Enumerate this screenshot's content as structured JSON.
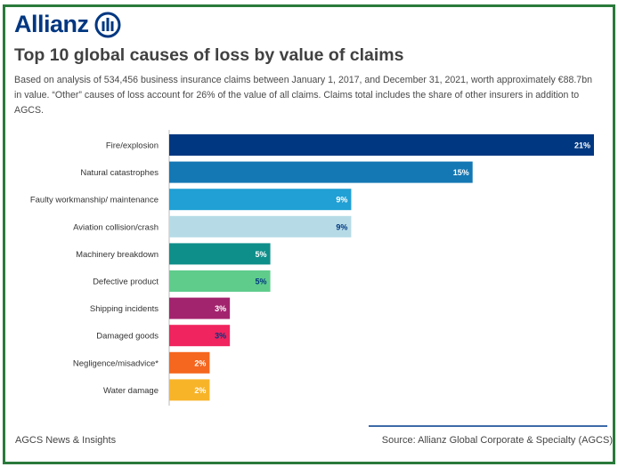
{
  "brand": {
    "name": "Allianz",
    "color": "#003781"
  },
  "header": {
    "title": "Top 10 global causes of loss by value of claims",
    "subtitle": "Based on analysis of 534,456 business insurance claims between January 1, 2017, and December 31, 2021, worth approximately €88.7bn in value. “Other” causes of loss account for 26% of the value of all claims. Claims total includes the share of other insurers in addition to AGCS."
  },
  "chart_data": {
    "type": "bar",
    "orientation": "horizontal",
    "categories": [
      "Fire/explosion",
      "Natural catastrophes",
      "Faulty workmanship/ maintenance",
      "Aviation collision/crash",
      "Machinery breakdown",
      "Defective product",
      "Shipping incidents",
      "Damaged goods",
      "Negligence/misadvice*",
      "Water damage"
    ],
    "values": [
      21,
      15,
      9,
      9,
      5,
      5,
      3,
      3,
      2,
      2
    ],
    "data_labels": [
      "21%",
      "15%",
      "9%",
      "9%",
      "5%",
      "5%",
      "3%",
      "3%",
      "2%",
      "2%"
    ],
    "colors": [
      "#003781",
      "#1478b4",
      "#20a0d4",
      "#b6dbe6",
      "#0f8f8a",
      "#5fcc8c",
      "#a3246e",
      "#f0245e",
      "#f5661e",
      "#f8b429"
    ],
    "label_colors": [
      "#ffffff",
      "#ffffff",
      "#ffffff",
      "#003781",
      "#ffffff",
      "#003781",
      "#ffffff",
      "#003781",
      "#ffffff",
      "#ffffff"
    ],
    "unit": "%",
    "xlim": [
      0,
      21
    ],
    "grid": false,
    "legend": "none"
  },
  "footer": {
    "left": "AGCS News & Insights",
    "right": "Source: Allianz Global Corporate & Specialty (AGCS)"
  }
}
